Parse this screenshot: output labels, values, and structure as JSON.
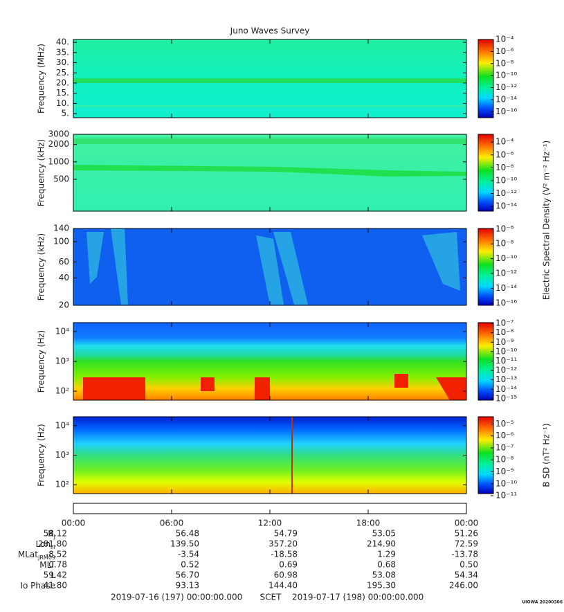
{
  "title": "Juno Waves Survey",
  "time_axis": {
    "xlim": [
      0,
      24
    ],
    "xticks": [
      {
        "value": 0,
        "label": "00:00"
      },
      {
        "value": 6,
        "label": "06:00"
      },
      {
        "value": 12,
        "label": "12:00"
      },
      {
        "value": 18,
        "label": "18:00"
      },
      {
        "value": 24,
        "label": "00:00"
      }
    ]
  },
  "chart_data": [
    {
      "type": "spectrogram",
      "ylabel": "Frequency (MHz)",
      "log": false,
      "ylim": [
        3,
        41.4
      ],
      "yticks": [
        {
          "value": 5,
          "label": "5."
        },
        {
          "value": 10,
          "label": "10."
        },
        {
          "value": 15,
          "label": "15."
        },
        {
          "value": 20,
          "label": "20."
        },
        {
          "value": 25,
          "label": "25."
        },
        {
          "value": 30,
          "label": "30."
        },
        {
          "value": 35,
          "label": "35."
        },
        {
          "value": 40,
          "label": "40."
        }
      ],
      "colorbar": {
        "log": true,
        "lim": [
          1e-17,
          0.0001
        ],
        "ticks": [
          {
            "value": 0.0001,
            "label": "10⁻⁴"
          },
          {
            "value": 1e-06,
            "label": "10⁻⁶"
          },
          {
            "value": 1e-08,
            "label": "10⁻⁸"
          },
          {
            "value": 1e-10,
            "label": "10⁻¹⁰"
          },
          {
            "value": 1e-12,
            "label": "10⁻¹²"
          },
          {
            "value": 1e-14,
            "label": "10⁻¹⁴"
          },
          {
            "value": 1e-16,
            "label": "10⁻¹⁶"
          }
        ]
      }
    },
    {
      "type": "spectrogram",
      "ylabel": "Frequency (kHz)",
      "log": true,
      "ylim": [
        140,
        3000
      ],
      "yticks": [
        500,
        1000,
        2000,
        3000
      ],
      "colorbar": {
        "log": true,
        "lim": [
          1.8e-15,
          0.0016
        ],
        "label": "Electric Spectral Density (V² m⁻² Hz⁻¹)",
        "ticks": [
          {
            "value": 0.0001,
            "label": "10⁻⁴"
          },
          {
            "value": 1e-06,
            "label": "10⁻⁶"
          },
          {
            "value": 1e-08,
            "label": "10⁻⁸"
          },
          {
            "value": 1e-10,
            "label": "10⁻¹⁰"
          },
          {
            "value": 1e-12,
            "label": "10⁻¹²"
          },
          {
            "value": 1e-14,
            "label": "10⁻¹⁴"
          }
        ]
      }
    },
    {
      "type": "spectrogram",
      "ylabel": "Frequency (kHz)",
      "log": true,
      "ylim": [
        20,
        140
      ],
      "yticks": [
        20,
        40,
        60,
        100,
        140
      ],
      "colorbar": {
        "log": true,
        "lim": [
          5e-17,
          1.2e-06
        ],
        "ticks": [
          {
            "value": 1e-06,
            "label": "10⁻⁶"
          },
          {
            "value": 1e-08,
            "label": "10⁻⁸"
          },
          {
            "value": 1e-10,
            "label": "10⁻¹⁰"
          },
          {
            "value": 1e-12,
            "label": "10⁻¹²"
          },
          {
            "value": 1e-14,
            "label": "10⁻¹⁴"
          },
          {
            "value": 1e-16,
            "label": "10⁻¹⁶"
          }
        ]
      }
    },
    {
      "type": "spectrogram",
      "ylabel": "Frequency (Hz)",
      "log": true,
      "ylim": [
        50,
        20000
      ],
      "yticks": [
        {
          "value": 100,
          "label": "10²"
        },
        {
          "value": 1000,
          "label": "10³"
        },
        {
          "value": 10000,
          "label": "10⁴"
        }
      ],
      "colorbar": {
        "log": true,
        "lim": [
          7e-16,
          1.2e-07
        ],
        "ticks": [
          {
            "value": 1e-07,
            "label": "10⁻⁷"
          },
          {
            "value": 1e-08,
            "label": "10⁻⁸"
          },
          {
            "value": 1e-09,
            "label": "10⁻⁹"
          },
          {
            "value": 1e-10,
            "label": "10⁻¹⁰"
          },
          {
            "value": 1e-11,
            "label": "10⁻¹¹"
          },
          {
            "value": 1e-12,
            "label": "10⁻¹²"
          },
          {
            "value": 1e-13,
            "label": "10⁻¹³"
          },
          {
            "value": 1e-14,
            "label": "10⁻¹⁴"
          },
          {
            "value": 1e-15,
            "label": "10⁻¹⁵"
          }
        ]
      }
    },
    {
      "type": "spectrogram",
      "ylabel": "Frequency (Hz)",
      "log": true,
      "ylim": [
        50,
        20000
      ],
      "yticks": [
        {
          "value": 100,
          "label": "10²"
        },
        {
          "value": 1000,
          "label": "10³"
        },
        {
          "value": 10000,
          "label": "10⁴"
        }
      ],
      "colorbar": {
        "log": true,
        "lim": [
          1.5e-11,
          4e-05
        ],
        "label": "B SD (nT² Hz⁻¹)",
        "ticks": [
          {
            "value": 1e-05,
            "label": "10⁻⁵"
          },
          {
            "value": 1e-06,
            "label": "10⁻⁶"
          },
          {
            "value": 1e-07,
            "label": "10⁻⁷"
          },
          {
            "value": 1e-08,
            "label": "10⁻⁸"
          },
          {
            "value": 1e-09,
            "label": "10⁻⁹"
          },
          {
            "value": 1e-10,
            "label": "10⁻¹⁰"
          },
          {
            "value": 1e-11,
            "label": "10⁻¹¹"
          }
        ]
      }
    }
  ],
  "ephemeris": [
    {
      "label": {
        "text": "R",
        "sub": "J"
      },
      "values": [
        "58.12",
        "56.48",
        "54.79",
        "53.05",
        "51.26"
      ]
    },
    {
      "label": {
        "text": "Lon",
        "sub": "III"
      },
      "values": [
        "281.80",
        "139.50",
        "357.20",
        "214.90",
        "72.59"
      ]
    },
    {
      "label": {
        "text": "MLat",
        "sub": "JRM09"
      },
      "values": [
        "-8.52",
        "-3.54",
        "-18.58",
        "1.29",
        "-13.78"
      ]
    },
    {
      "label": {
        "text": "MLT"
      },
      "values": [
        "0.78",
        "0.52",
        "0.69",
        "0.68",
        "0.50"
      ]
    },
    {
      "label": {
        "text": "L"
      },
      "values": [
        "59.42",
        "56.70",
        "60.98",
        "53.08",
        "54.34"
      ]
    },
    {
      "label": {
        "text": "Io Phase"
      },
      "values": [
        "41.80",
        "93.13",
        "144.40",
        "195.30",
        "246.00"
      ]
    }
  ],
  "footer": {
    "start": "2019-07-16 (197) 00:00:00.000",
    "center": "SCET",
    "end": "2019-07-17 (198) 00:00:00.000",
    "stamp": "UIOWA 20200306"
  }
}
